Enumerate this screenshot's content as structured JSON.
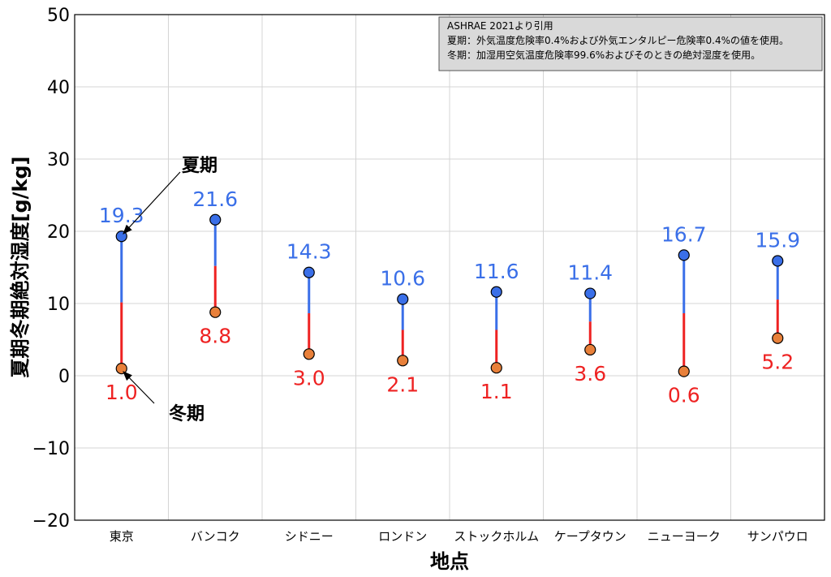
{
  "chart_data": {
    "type": "range",
    "ylabel": "夏期冬期絶対湿度[g/kg]",
    "xlabel": "地点",
    "ylim": [
      -20,
      50
    ],
    "yticks": [
      -20,
      -10,
      0,
      10,
      20,
      30,
      40,
      50
    ],
    "grid": true,
    "categories": [
      "東京",
      "バンコク",
      "シドニー",
      "ロンドン",
      "ストックホルム",
      "ケープタウン",
      "ニューヨーク",
      "サンパウロ"
    ],
    "series": [
      {
        "name": "夏期",
        "values": [
          19.3,
          21.6,
          14.3,
          10.6,
          11.6,
          11.4,
          16.7,
          15.9
        ],
        "labels": [
          "19.3",
          "21.6",
          "14.3",
          "10.6",
          "11.6",
          "11.4",
          "16.7",
          "15.9"
        ],
        "color": "#3a6fe8"
      },
      {
        "name": "冬期",
        "values": [
          1.0,
          8.8,
          3.0,
          2.1,
          1.1,
          3.6,
          0.6,
          5.2
        ],
        "labels": [
          "1.0",
          "8.8",
          "3.0",
          "2.1",
          "1.1",
          "3.6",
          "0.6",
          "5.2"
        ],
        "color": "#ee2222"
      }
    ],
    "marker_colors": {
      "summer": "#3a6fe8",
      "winter": "#e8803a"
    },
    "annotations": [
      {
        "text": "夏期",
        "target": "東京 夏期"
      },
      {
        "text": "冬期",
        "target": "東京 冬期"
      }
    ],
    "note": [
      "ASHRAE 2021より引用",
      "夏期：外気温度危険率0.4%および外気エンタルピー危険率0.4%の値を使用。",
      "冬期：加湿用空気温度危険率99.6%およびそのときの絶対湿度を使用。"
    ]
  }
}
